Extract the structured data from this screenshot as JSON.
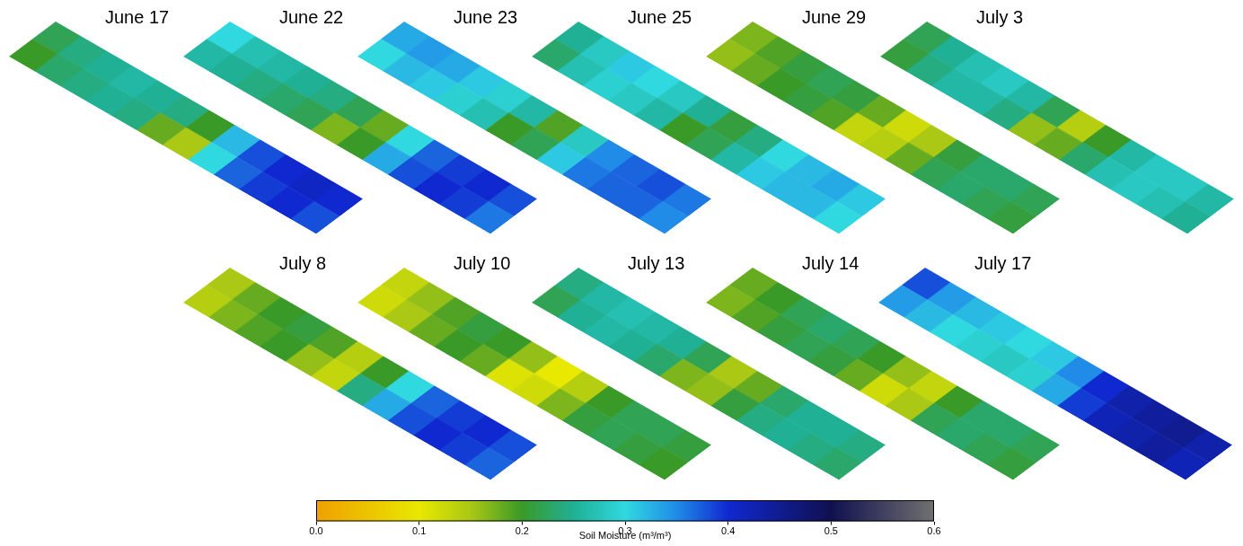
{
  "chart_data": {
    "type": "heatmap",
    "tick_labels": false,
    "panels": [
      {
        "title": "June 17",
        "cells": [
          [
            0.22,
            0.24,
            0.25,
            0.26,
            0.25,
            0.24,
            0.2,
            0.32,
            0.38,
            0.4,
            0.41,
            0.4
          ],
          [
            0.2,
            0.23,
            0.24,
            0.25,
            0.24,
            0.18,
            0.15,
            0.3,
            0.37,
            0.39,
            0.4,
            0.38
          ]
        ]
      },
      {
        "title": "June 22",
        "cells": [
          [
            0.3,
            0.27,
            0.26,
            0.25,
            0.24,
            0.22,
            0.18,
            0.3,
            0.37,
            0.39,
            0.4,
            0.38
          ],
          [
            0.26,
            0.25,
            0.24,
            0.23,
            0.22,
            0.17,
            0.2,
            0.33,
            0.38,
            0.4,
            0.39,
            0.36
          ]
        ]
      },
      {
        "title": "June 23",
        "cells": [
          [
            0.33,
            0.34,
            0.33,
            0.31,
            0.29,
            0.26,
            0.19,
            0.28,
            0.35,
            0.37,
            0.38,
            0.36
          ],
          [
            0.3,
            0.32,
            0.31,
            0.29,
            0.27,
            0.2,
            0.22,
            0.31,
            0.36,
            0.37,
            0.37,
            0.35
          ]
        ]
      },
      {
        "title": "June 25",
        "cells": [
          [
            0.25,
            0.28,
            0.31,
            0.3,
            0.28,
            0.25,
            0.21,
            0.24,
            0.3,
            0.32,
            0.33,
            0.31
          ],
          [
            0.23,
            0.27,
            0.29,
            0.28,
            0.26,
            0.2,
            0.22,
            0.26,
            0.31,
            0.32,
            0.32,
            0.3
          ]
        ]
      },
      {
        "title": "June 29",
        "cells": [
          [
            0.17,
            0.19,
            0.21,
            0.22,
            0.21,
            0.18,
            0.12,
            0.15,
            0.21,
            0.23,
            0.23,
            0.22
          ],
          [
            0.16,
            0.18,
            0.2,
            0.21,
            0.19,
            0.13,
            0.14,
            0.18,
            0.22,
            0.23,
            0.22,
            0.21
          ]
        ]
      },
      {
        "title": "July 3",
        "cells": [
          [
            0.22,
            0.25,
            0.27,
            0.28,
            0.26,
            0.22,
            0.14,
            0.2,
            0.26,
            0.28,
            0.28,
            0.26
          ],
          [
            0.21,
            0.24,
            0.26,
            0.26,
            0.24,
            0.16,
            0.18,
            0.23,
            0.27,
            0.28,
            0.27,
            0.25
          ]
        ]
      },
      {
        "title": "July 8",
        "cells": [
          [
            0.15,
            0.18,
            0.2,
            0.21,
            0.19,
            0.14,
            0.2,
            0.3,
            0.37,
            0.39,
            0.4,
            0.38
          ],
          [
            0.14,
            0.17,
            0.19,
            0.2,
            0.16,
            0.13,
            0.24,
            0.33,
            0.38,
            0.4,
            0.39,
            0.37
          ]
        ]
      },
      {
        "title": "July 10",
        "cells": [
          [
            0.13,
            0.16,
            0.19,
            0.21,
            0.2,
            0.16,
            0.1,
            0.14,
            0.2,
            0.22,
            0.22,
            0.21
          ],
          [
            0.12,
            0.15,
            0.18,
            0.2,
            0.18,
            0.11,
            0.12,
            0.17,
            0.21,
            0.22,
            0.21,
            0.2
          ]
        ]
      },
      {
        "title": "July 13",
        "cells": [
          [
            0.24,
            0.26,
            0.27,
            0.26,
            0.25,
            0.22,
            0.15,
            0.18,
            0.23,
            0.25,
            0.25,
            0.24
          ],
          [
            0.22,
            0.25,
            0.26,
            0.25,
            0.23,
            0.17,
            0.16,
            0.21,
            0.24,
            0.25,
            0.24,
            0.23
          ]
        ]
      },
      {
        "title": "July 14",
        "cells": [
          [
            0.18,
            0.2,
            0.22,
            0.23,
            0.22,
            0.2,
            0.16,
            0.13,
            0.2,
            0.23,
            0.23,
            0.22
          ],
          [
            0.17,
            0.19,
            0.21,
            0.22,
            0.21,
            0.18,
            0.12,
            0.15,
            0.22,
            0.23,
            0.22,
            0.21
          ]
        ]
      },
      {
        "title": "July 17",
        "cells": [
          [
            0.38,
            0.34,
            0.32,
            0.31,
            0.3,
            0.31,
            0.35,
            0.4,
            0.43,
            0.44,
            0.45,
            0.43
          ],
          [
            0.34,
            0.32,
            0.3,
            0.29,
            0.28,
            0.29,
            0.33,
            0.39,
            0.42,
            0.43,
            0.44,
            0.42
          ]
        ]
      }
    ],
    "colorbar": {
      "label": "Soil Moisture (m³/m³)",
      "range": [
        0,
        0.6
      ],
      "ticks": [
        {
          "value": 0,
          "label": "0.0"
        },
        0.1,
        0.2,
        0.3,
        0.4,
        0.5,
        0.6
      ]
    }
  }
}
